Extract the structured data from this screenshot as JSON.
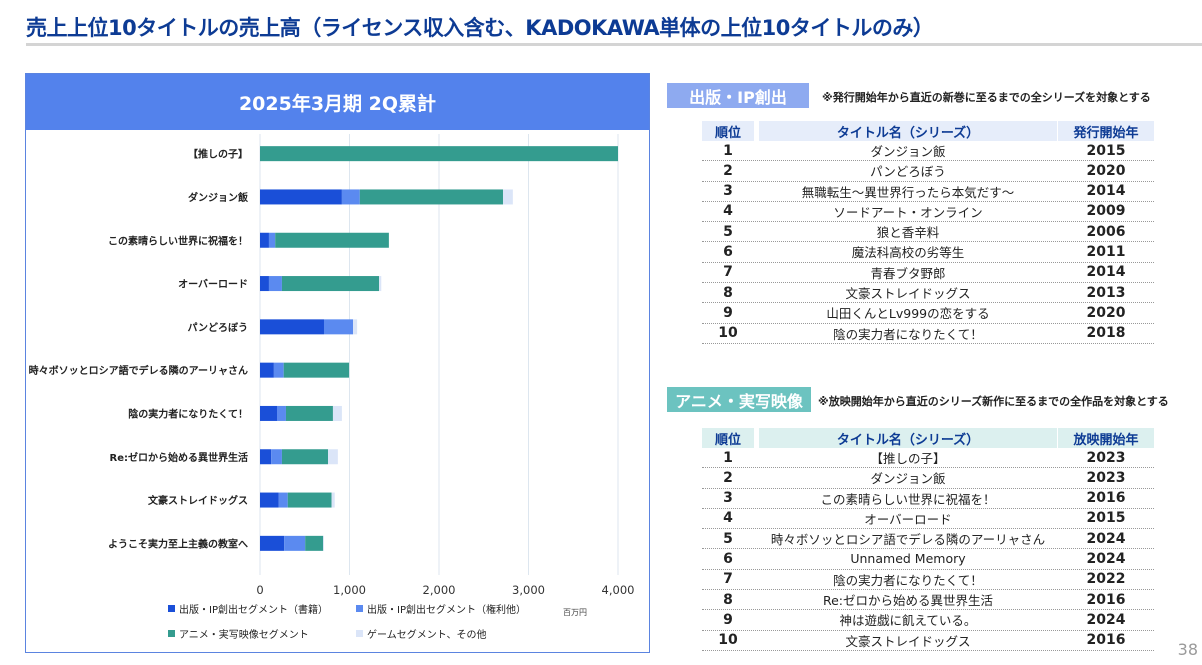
{
  "page": {
    "title": "売上上位10タイトルの売上高（ライセンス収入含む、KADOKAWA単体の上位10タイトルのみ）",
    "page_number": "38"
  },
  "colors": {
    "title": "#0d3b94",
    "chart_header_bg": "#5382ec",
    "publishing_books": "#1a4fd8",
    "publishing_rights": "#5b8af0",
    "anime_live_action": "#349c8f",
    "game_other": "#dbe5f8",
    "publishing_tag": "#8eaaf0",
    "publishing_th_bg": "#e6edfa",
    "anime_tag": "#6cc3c0",
    "anime_th_bg": "#dcf0ef"
  },
  "chart_data": {
    "type": "bar",
    "orientation": "horizontal",
    "stacked": true,
    "title": "2025年3月期 2Q累計",
    "xlabel": "",
    "ylabel": "",
    "unit": "百万円",
    "xlim": [
      0,
      4000
    ],
    "xticks": [
      "0",
      "1,000",
      "2,000",
      "3,000",
      "4,000"
    ],
    "xtick_values": [
      0,
      1000,
      2000,
      3000,
      4000
    ],
    "grid": true,
    "legend_position": "bottom",
    "categories": [
      "【推しの子】",
      "ダンジョン飯",
      "この素晴らしい世界に祝福を！",
      "オーバーロード",
      "パンどろぼう",
      "時々ボソッとロシア語でデレる隣のアーリャさん",
      "陰の実力者になりたくて！",
      "Re:ゼロから始める異世界生活",
      "文豪ストレイドッグス",
      "ようこそ実力至上主義の教室へ"
    ],
    "series": [
      {
        "name": "出版・IP創出セグメント（書籍）",
        "color": "#1a4fd8",
        "values": [
          0,
          915,
          100,
          100,
          715,
          155,
          190,
          125,
          210,
          270
        ]
      },
      {
        "name": "出版・IP創出セグメント（権利他）",
        "color": "#5b8af0",
        "values": [
          0,
          200,
          70,
          145,
          325,
          110,
          100,
          120,
          100,
          235
        ]
      },
      {
        "name": "アニメ・実写映像セグメント",
        "color": "#349c8f",
        "values": [
          4000,
          1600,
          1270,
          1085,
          0,
          730,
          525,
          515,
          490,
          200
        ]
      },
      {
        "name": "ゲームセグメント、その他",
        "color": "#dbe5f8",
        "values": [
          0,
          110,
          0,
          25,
          45,
          0,
          100,
          110,
          35,
          10
        ]
      }
    ]
  },
  "publishing": {
    "tag": "出版・IP創出",
    "note": "※発行開始年から直近の新巻に至るまでの全シリーズを対象とする",
    "headers": {
      "rank": "順位",
      "title": "タイトル名（シリーズ）",
      "year": "発行開始年"
    },
    "rows": [
      {
        "rank": "1",
        "title": "ダンジョン飯",
        "year": "2015"
      },
      {
        "rank": "2",
        "title": "パンどろぼう",
        "year": "2020"
      },
      {
        "rank": "3",
        "title": "無職転生～異世界行ったら本気だす～",
        "year": "2014"
      },
      {
        "rank": "4",
        "title": "ソードアート・オンライン",
        "year": "2009"
      },
      {
        "rank": "5",
        "title": "狼と香辛料",
        "year": "2006"
      },
      {
        "rank": "6",
        "title": "魔法科高校の劣等生",
        "year": "2011"
      },
      {
        "rank": "7",
        "title": "青春ブタ野郎",
        "year": "2014"
      },
      {
        "rank": "8",
        "title": "文豪ストレイドッグス",
        "year": "2013"
      },
      {
        "rank": "9",
        "title": "山田くんとLv999の恋をする",
        "year": "2020"
      },
      {
        "rank": "10",
        "title": "陰の実力者になりたくて！",
        "year": "2018"
      }
    ]
  },
  "anime": {
    "tag": "アニメ・実写映像",
    "note": "※放映開始年から直近のシリーズ新作に至るまでの全作品を対象とする",
    "headers": {
      "rank": "順位",
      "title": "タイトル名（シリーズ）",
      "year": "放映開始年"
    },
    "rows": [
      {
        "rank": "1",
        "title": "【推しの子】",
        "year": "2023"
      },
      {
        "rank": "2",
        "title": "ダンジョン飯",
        "year": "2023"
      },
      {
        "rank": "3",
        "title": "この素晴らしい世界に祝福を！",
        "year": "2016"
      },
      {
        "rank": "4",
        "title": "オーバーロード",
        "year": "2015"
      },
      {
        "rank": "5",
        "title": "時々ボソッとロシア語でデレる隣のアーリャさん",
        "year": "2024"
      },
      {
        "rank": "6",
        "title": "Unnamed Memory",
        "year": "2024"
      },
      {
        "rank": "7",
        "title": "陰の実力者になりたくて！",
        "year": "2022"
      },
      {
        "rank": "8",
        "title": "Re:ゼロから始める異世界生活",
        "year": "2016"
      },
      {
        "rank": "9",
        "title": "神は遊戯に飢えている。",
        "year": "2024"
      },
      {
        "rank": "10",
        "title": "文豪ストレイドッグス",
        "year": "2016"
      }
    ]
  }
}
